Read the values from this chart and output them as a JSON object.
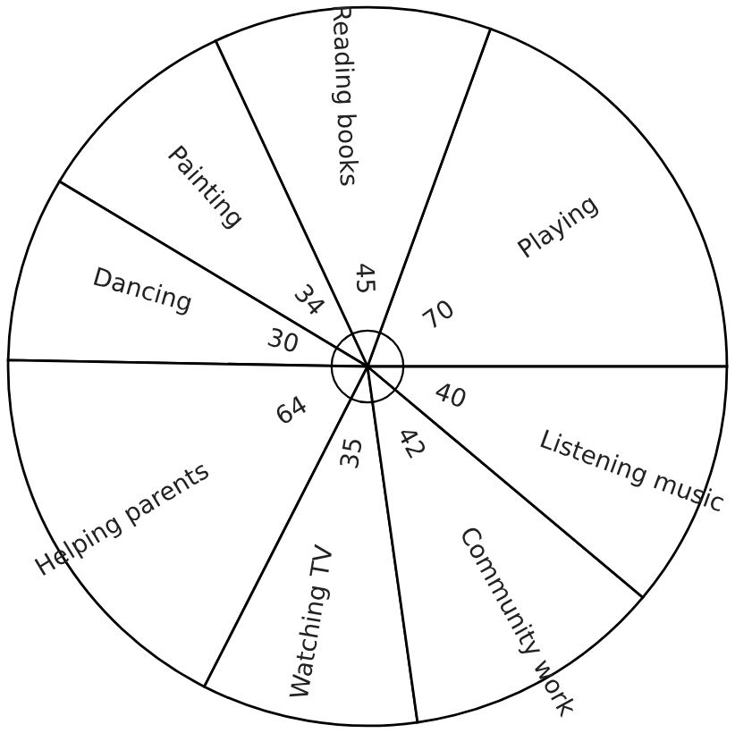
{
  "chart_data": {
    "type": "pie",
    "categories": [
      "Playing",
      "Reading books",
      "Painting",
      "Dancing",
      "Helping parents",
      "Watching TV",
      "Community work",
      "Listening music"
    ],
    "values": [
      70,
      45,
      34,
      30,
      64,
      35,
      42,
      40
    ],
    "colors": [
      "#ffffff",
      "#ffffff",
      "#ffffff",
      "#ffffff",
      "#ffffff",
      "#ffffff",
      "#ffffff",
      "#ffffff"
    ],
    "data_labels": true
  }
}
